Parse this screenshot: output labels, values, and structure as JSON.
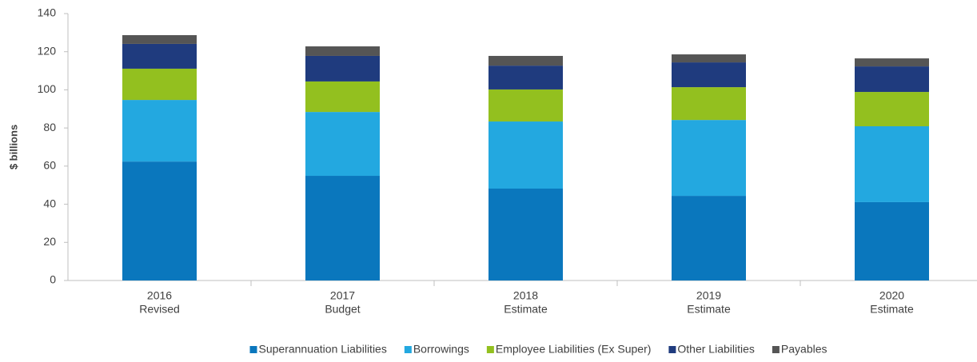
{
  "chart_data": {
    "type": "stacked_bar",
    "y_label": "$ billions",
    "categories": [
      [
        "2016",
        "Revised"
      ],
      [
        "2017",
        "Budget"
      ],
      [
        "2018",
        "Estimate"
      ],
      [
        "2019",
        "Estimate"
      ],
      [
        "2020",
        "Estimate"
      ]
    ],
    "series": [
      {
        "name": "Superannuation Liabilities",
        "color": "#0a77bd",
        "values": [
          62.4,
          54.9,
          48.2,
          44.4,
          41.1
        ]
      },
      {
        "name": "Borrowings",
        "color": "#23a8e0",
        "values": [
          32.3,
          33.5,
          35.2,
          39.8,
          39.8
        ]
      },
      {
        "name": "Employee Liabilities (Ex Super)",
        "color": "#93c01f",
        "values": [
          16.4,
          16.0,
          16.8,
          17.2,
          18.0
        ]
      },
      {
        "name": "Other Liabilities",
        "color": "#1f3b7e",
        "values": [
          13.0,
          13.4,
          12.5,
          13.0,
          13.4
        ]
      },
      {
        "name": "Payables",
        "color": "#555555",
        "values": [
          4.6,
          5.0,
          5.1,
          4.2,
          4.2
        ]
      }
    ],
    "ylim": [
      0,
      140
    ],
    "yticks": [
      0,
      20,
      40,
      60,
      80,
      100,
      120,
      140
    ],
    "grid": false,
    "legend": "bottom"
  }
}
